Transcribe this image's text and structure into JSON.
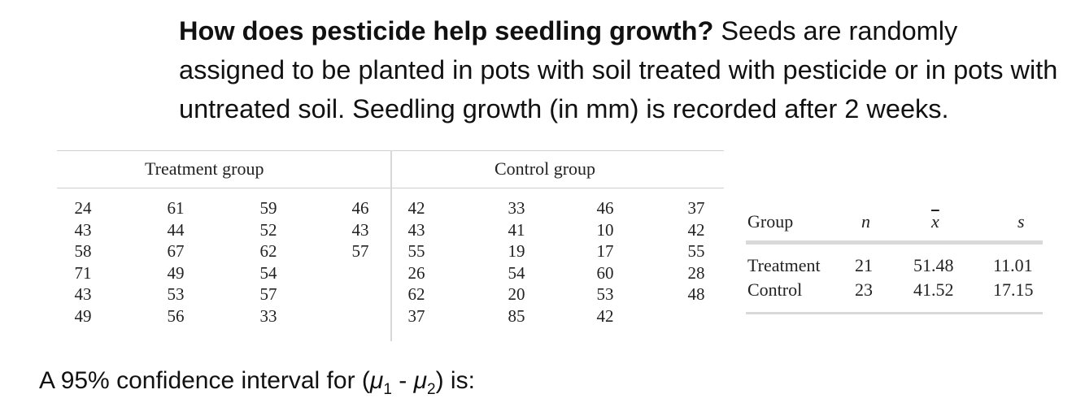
{
  "question": {
    "bold": "How does pesticide help seedling growth?",
    "rest": " Seeds are randomly assigned to be planted in pots with soil treated with pesticide or in pots with untreated soil. Seedling growth (in mm) is recorded after 2 weeks."
  },
  "data_table": {
    "treatment_header": "Treatment group",
    "control_header": "Control group",
    "treatment_columns": [
      [
        "24",
        "43",
        "58",
        "71",
        "43",
        "49"
      ],
      [
        "61",
        "44",
        "67",
        "49",
        "53",
        "56"
      ],
      [
        "59",
        "52",
        "62",
        "54",
        "57",
        "33"
      ],
      [
        "46",
        "43",
        "57"
      ]
    ],
    "control_columns": [
      [
        "42",
        "43",
        "55",
        "26",
        "62",
        "37"
      ],
      [
        "33",
        "41",
        "19",
        "54",
        "20",
        "85"
      ],
      [
        "46",
        "10",
        "17",
        "60",
        "53",
        "42"
      ],
      [
        "37",
        "42",
        "55",
        "28",
        "48"
      ]
    ]
  },
  "summary_table": {
    "headers": {
      "group": "Group",
      "n": "n",
      "xbar": "x",
      "s": "s"
    },
    "rows": [
      {
        "group": "Treatment",
        "n": "21",
        "xbar": "51.48",
        "s": "11.01"
      },
      {
        "group": "Control",
        "n": "23",
        "xbar": "41.52",
        "s": "17.15"
      }
    ]
  },
  "prompt": {
    "before": "A 95% confidence interval for (",
    "mu": "μ",
    "sub1": "1",
    "dash": " - ",
    "sub2": "2",
    "after": ") is:"
  }
}
